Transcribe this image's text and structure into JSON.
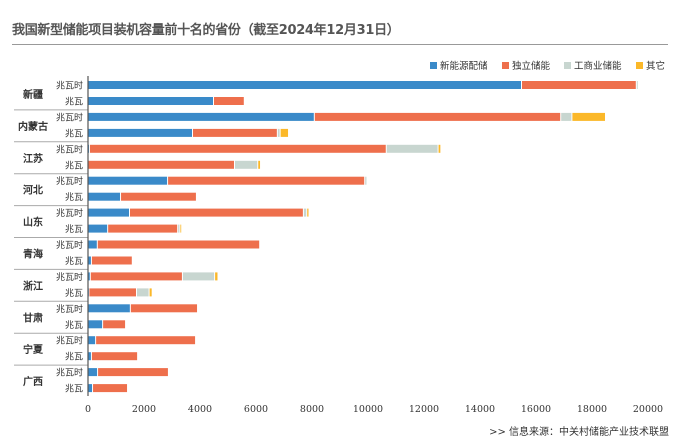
{
  "chart_data": {
    "type": "bar",
    "orientation": "horizontal",
    "stacked": true,
    "title": "我国新型储能项目装机容量前十名的省份（截至2024年12月31日）",
    "source": ">>   信息来源：中关村储能产业技术联盟",
    "xlim": [
      0,
      20000
    ],
    "xticks": [
      "0",
      "2000",
      "4000",
      "6000",
      "8000",
      "10000",
      "12000",
      "14000",
      "16000",
      "18000",
      "20000"
    ],
    "grid": false,
    "legend_position": "top-right",
    "provinces": [
      "新疆",
      "内蒙古",
      "江苏",
      "河北",
      "山东",
      "青海",
      "浙江",
      "甘肃",
      "宁夏",
      "广西"
    ],
    "units": [
      "兆瓦时",
      "兆瓦"
    ],
    "series": [
      {
        "name": "新能源配储",
        "color": "#3a8ac9",
        "values": [
          [
            15500,
            4500
          ],
          [
            8100,
            3750
          ],
          [
            70,
            0
          ],
          [
            2860,
            1180
          ],
          [
            1500,
            720
          ],
          [
            350,
            140
          ],
          [
            100,
            50
          ],
          [
            1530,
            540
          ],
          [
            290,
            140
          ],
          [
            360,
            180
          ]
        ]
      },
      {
        "name": "独立储能",
        "color": "#ee6f4c",
        "values": [
          [
            4100,
            1100
          ],
          [
            8800,
            3030
          ],
          [
            10600,
            5250
          ],
          [
            7040,
            2710
          ],
          [
            6210,
            2500
          ],
          [
            5800,
            1460
          ],
          [
            3290,
            1700
          ],
          [
            2400,
            820
          ],
          [
            3570,
            1650
          ],
          [
            2530,
            1250
          ]
        ]
      },
      {
        "name": "工商业储能",
        "color": "#c8d6d0",
        "values": [
          [
            70,
            0
          ],
          [
            400,
            100
          ],
          [
            1850,
            830
          ],
          [
            80,
            0
          ],
          [
            120,
            80
          ],
          [
            0,
            0
          ],
          [
            1150,
            450
          ],
          [
            0,
            0
          ],
          [
            0,
            0
          ],
          [
            0,
            0
          ]
        ]
      },
      {
        "name": "其它",
        "color": "#fbb829",
        "values": [
          [
            0,
            0
          ],
          [
            1200,
            300
          ],
          [
            100,
            100
          ],
          [
            0,
            0
          ],
          [
            80,
            50
          ],
          [
            0,
            0
          ],
          [
            120,
            110
          ],
          [
            0,
            0
          ],
          [
            0,
            0
          ],
          [
            0,
            0
          ]
        ]
      }
    ]
  }
}
